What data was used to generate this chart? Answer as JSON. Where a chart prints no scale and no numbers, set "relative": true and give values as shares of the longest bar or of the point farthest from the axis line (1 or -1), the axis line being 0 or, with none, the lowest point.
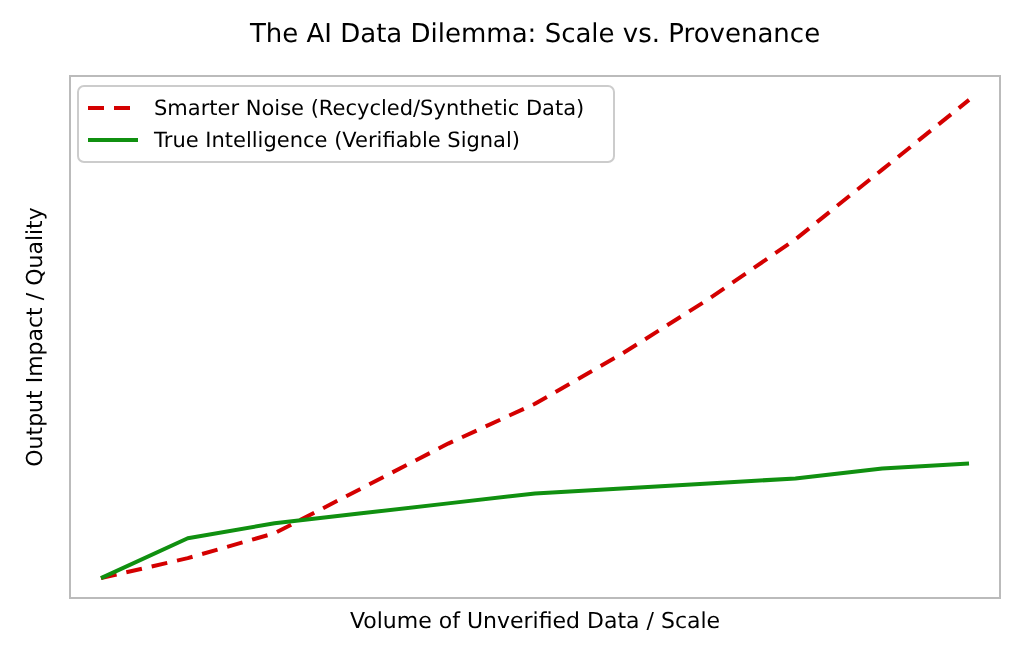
{
  "chart_data": {
    "type": "line",
    "title": "The AI Data Dilemma: Scale vs. Provenance",
    "xlabel": "Volume of Unverified Data / Scale",
    "ylabel": "Output Impact / Quality",
    "relative": true,
    "categories": [
      null,
      null,
      null,
      null,
      null,
      null,
      null,
      null,
      null,
      null,
      null
    ],
    "legend": "top left",
    "series": [
      {
        "name": "Smarter Noise (Recycled/Synthetic Data)",
        "color": "#d40000",
        "line_style": "dashed",
        "values": [
          0.04,
          0.08,
          0.13,
          0.22,
          0.31,
          0.39,
          0.49,
          0.6,
          0.72,
          0.86,
          1
        ]
      },
      {
        "name": "True Intelligence (Verifiable Signal)",
        "color": "#109010",
        "line_style": "solid",
        "values": [
          0.04,
          0.12,
          0.15,
          0.17,
          0.19,
          0.21,
          0.22,
          0.23,
          0.24,
          0.26,
          0.27
        ]
      }
    ]
  }
}
